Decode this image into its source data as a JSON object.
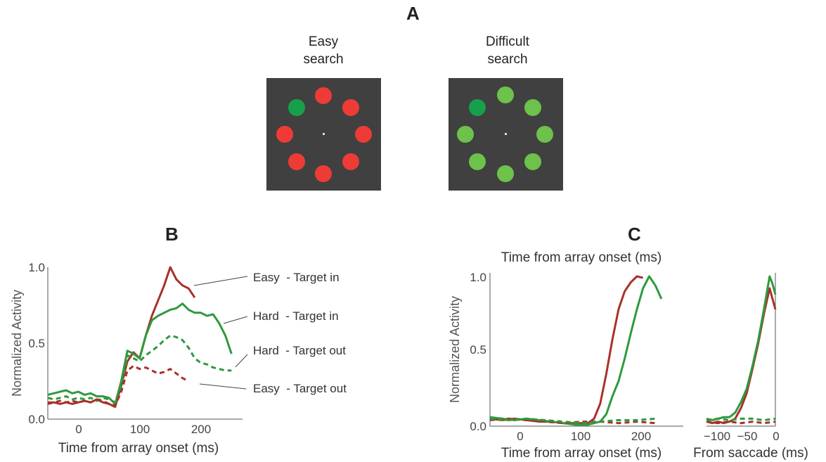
{
  "panelA": {
    "letter": "A",
    "easy_caption_l1": "Easy",
    "easy_caption_l2": "search",
    "hard_caption_l1": "Difficult",
    "hard_caption_l2": "search",
    "colors": {
      "background": "#404040",
      "red": "#ef3b36",
      "green_light": "#6cc24a",
      "green_dark": "#17a04b"
    }
  },
  "chart_data": [
    {
      "panel": "B",
      "type": "line",
      "xlabel": "Time from array onset (ms)",
      "ylabel": "Normalized Activity",
      "xlim": [
        -50,
        260
      ],
      "ylim": [
        0,
        1.0
      ],
      "xticks": [
        "0",
        "100",
        "200"
      ],
      "yticks": [
        "0.0",
        "0.5",
        "1.0"
      ],
      "series": [
        {
          "name": "Easy  - Target in",
          "color": "#a8312b",
          "dash": false,
          "x": [
            -50,
            -40,
            -30,
            -20,
            -10,
            0,
            10,
            20,
            30,
            40,
            50,
            60,
            70,
            80,
            90,
            100,
            110,
            120,
            130,
            140,
            150,
            160,
            170,
            180,
            190
          ],
          "y": [
            0.1,
            0.11,
            0.1,
            0.11,
            0.1,
            0.11,
            0.12,
            0.11,
            0.13,
            0.11,
            0.1,
            0.08,
            0.22,
            0.38,
            0.44,
            0.4,
            0.55,
            0.68,
            0.78,
            0.88,
            1.0,
            0.92,
            0.88,
            0.86,
            0.8
          ]
        },
        {
          "name": "Hard  - Target in",
          "color": "#2e9a3e",
          "dash": false,
          "x": [
            -50,
            -40,
            -30,
            -20,
            -10,
            0,
            10,
            20,
            30,
            40,
            50,
            60,
            70,
            80,
            90,
            100,
            110,
            120,
            130,
            140,
            150,
            160,
            170,
            180,
            190,
            200,
            210,
            220,
            230,
            240,
            250
          ],
          "y": [
            0.16,
            0.17,
            0.18,
            0.19,
            0.17,
            0.18,
            0.16,
            0.17,
            0.15,
            0.15,
            0.14,
            0.1,
            0.25,
            0.45,
            0.43,
            0.4,
            0.55,
            0.65,
            0.68,
            0.7,
            0.72,
            0.73,
            0.76,
            0.72,
            0.7,
            0.7,
            0.68,
            0.69,
            0.63,
            0.55,
            0.43
          ]
        },
        {
          "name": "Hard  - Target out",
          "color": "#2e9a3e",
          "dash": true,
          "x": [
            -50,
            -40,
            -30,
            -20,
            -10,
            0,
            10,
            20,
            30,
            40,
            50,
            60,
            70,
            80,
            90,
            100,
            110,
            120,
            130,
            140,
            150,
            160,
            170,
            180,
            190,
            200,
            210,
            220,
            230,
            240,
            250
          ],
          "y": [
            0.14,
            0.13,
            0.14,
            0.15,
            0.13,
            0.14,
            0.13,
            0.14,
            0.12,
            0.14,
            0.13,
            0.11,
            0.22,
            0.42,
            0.4,
            0.38,
            0.42,
            0.45,
            0.48,
            0.52,
            0.55,
            0.54,
            0.52,
            0.47,
            0.4,
            0.37,
            0.36,
            0.34,
            0.33,
            0.32,
            0.32
          ]
        },
        {
          "name": "Easy  - Target out",
          "color": "#a8312b",
          "dash": true,
          "x": [
            -50,
            -40,
            -30,
            -20,
            -10,
            0,
            10,
            20,
            30,
            40,
            50,
            60,
            70,
            80,
            90,
            100,
            110,
            120,
            130,
            140,
            150,
            160,
            170,
            180
          ],
          "y": [
            0.11,
            0.11,
            0.12,
            0.11,
            0.12,
            0.11,
            0.12,
            0.11,
            0.13,
            0.12,
            0.1,
            0.09,
            0.18,
            0.32,
            0.35,
            0.33,
            0.34,
            0.32,
            0.3,
            0.31,
            0.33,
            0.3,
            0.27,
            0.25
          ]
        }
      ]
    },
    {
      "panel": "C",
      "type": "line",
      "title": "Time from array onset (ms)",
      "xlabel": "Time from array onset (ms)",
      "ylabel": "Normalized Activity",
      "xlim": [
        -50,
        260
      ],
      "ylim": [
        0,
        1.0
      ],
      "xticks": [
        "0",
        "100",
        "200"
      ],
      "yticks": [
        "0.0",
        "0.5",
        "1.0"
      ],
      "series": [
        {
          "color": "#a8312b",
          "dash": false,
          "x": [
            -50,
            -30,
            -10,
            10,
            30,
            50,
            70,
            90,
            110,
            120,
            130,
            140,
            150,
            160,
            170,
            180,
            190,
            200
          ],
          "y": [
            0.05,
            0.04,
            0.05,
            0.04,
            0.03,
            0.03,
            0.02,
            0.02,
            0.02,
            0.05,
            0.15,
            0.35,
            0.58,
            0.78,
            0.9,
            0.96,
            1.0,
            0.99
          ]
        },
        {
          "color": "#2e9a3e",
          "dash": false,
          "x": [
            -50,
            -30,
            -10,
            10,
            30,
            50,
            70,
            90,
            110,
            130,
            140,
            150,
            160,
            170,
            180,
            190,
            200,
            210,
            220,
            230
          ],
          "y": [
            0.06,
            0.05,
            0.04,
            0.05,
            0.04,
            0.03,
            0.02,
            0.01,
            0.01,
            0.03,
            0.08,
            0.2,
            0.3,
            0.45,
            0.62,
            0.78,
            0.92,
            1.0,
            0.94,
            0.85
          ]
        },
        {
          "color": "#a8312b",
          "dash": true,
          "x": [
            -50,
            -20,
            10,
            40,
            70,
            100,
            130,
            160,
            190,
            220
          ],
          "y": [
            0.04,
            0.05,
            0.04,
            0.03,
            0.02,
            0.03,
            0.03,
            0.02,
            0.03,
            0.02
          ]
        },
        {
          "color": "#2e9a3e",
          "dash": true,
          "x": [
            -50,
            -20,
            10,
            40,
            70,
            100,
            130,
            160,
            190,
            220
          ],
          "y": [
            0.05,
            0.04,
            0.05,
            0.04,
            0.03,
            0.02,
            0.03,
            0.04,
            0.04,
            0.05
          ]
        }
      ]
    },
    {
      "panel": "C-saccade",
      "type": "line",
      "xlabel": "From saccade (ms)",
      "xlim": [
        -120,
        0
      ],
      "ylim": [
        0,
        1.0
      ],
      "xticks": [
        "−100",
        "−50",
        "0"
      ],
      "series": [
        {
          "color": "#a8312b",
          "dash": false,
          "x": [
            -120,
            -110,
            -100,
            -90,
            -80,
            -70,
            -60,
            -50,
            -40,
            -30,
            -20,
            -10,
            -5,
            0
          ],
          "y": [
            0.03,
            0.02,
            0.03,
            0.02,
            0.03,
            0.05,
            0.12,
            0.22,
            0.38,
            0.55,
            0.75,
            0.92,
            0.85,
            0.78
          ]
        },
        {
          "color": "#2e9a3e",
          "dash": false,
          "x": [
            -120,
            -110,
            -100,
            -90,
            -80,
            -70,
            -60,
            -50,
            -40,
            -30,
            -20,
            -10,
            -5,
            0
          ],
          "y": [
            0.05,
            0.04,
            0.05,
            0.06,
            0.06,
            0.09,
            0.16,
            0.25,
            0.4,
            0.57,
            0.78,
            1.0,
            0.95,
            0.88
          ]
        },
        {
          "color": "#a8312b",
          "dash": true,
          "x": [
            -120,
            -100,
            -80,
            -60,
            -40,
            -20,
            0
          ],
          "y": [
            0.03,
            0.02,
            0.03,
            0.02,
            0.03,
            0.02,
            0.03
          ]
        },
        {
          "color": "#2e9a3e",
          "dash": true,
          "x": [
            -120,
            -100,
            -80,
            -60,
            -40,
            -20,
            0
          ],
          "y": [
            0.04,
            0.05,
            0.04,
            0.05,
            0.05,
            0.04,
            0.05
          ]
        }
      ]
    }
  ],
  "panelB_letter": "B",
  "panelC_letter": "C"
}
